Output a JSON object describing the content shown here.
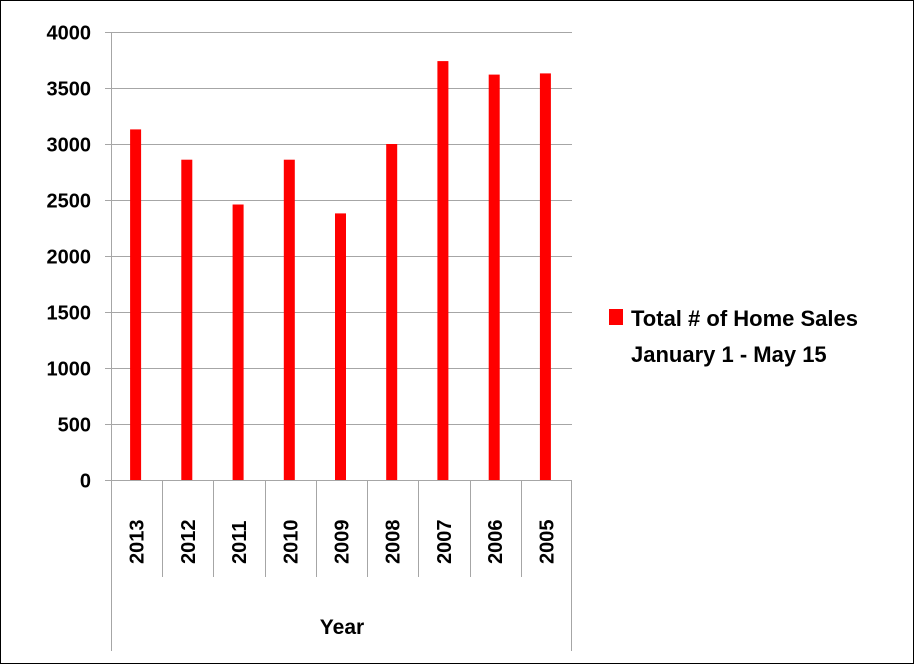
{
  "chart_data": {
    "type": "bar",
    "categories": [
      "2013",
      "2012",
      "2011",
      "2010",
      "2009",
      "2008",
      "2007",
      "2006",
      "2005"
    ],
    "series": [
      {
        "name": "Total # of Home Sales January 1 - May 15",
        "values": [
          3130,
          2860,
          2460,
          2860,
          2380,
          3000,
          3740,
          3620,
          3630
        ],
        "color": "#ff0000"
      }
    ],
    "xlabel": "Year",
    "ylim": [
      0,
      4000
    ],
    "yticks": [
      0,
      500,
      1000,
      1500,
      2000,
      2500,
      3000,
      3500,
      4000
    ],
    "grid": true,
    "legend_position": "right",
    "legend_lines": [
      "Total # of Home Sales",
      "January 1 - May 15"
    ]
  }
}
